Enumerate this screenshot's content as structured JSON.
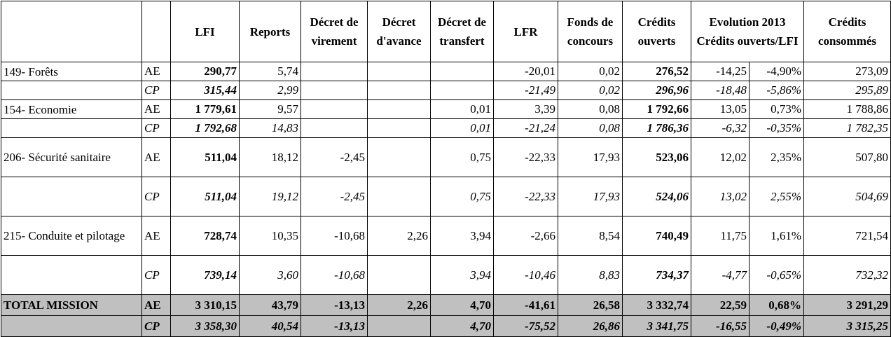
{
  "table": {
    "header": [
      "LFI",
      "Reports",
      "Décret de virement",
      "Décret d'avance",
      "Décret de transfert",
      "LFR",
      "Fonds de concours",
      "Crédits ouverts",
      "Evolution 2013 Crédits ouverts/LFI",
      "Crédits consommés"
    ],
    "rows": [
      [
        "149- Forêts",
        "AE",
        "290,77",
        "5,74",
        null,
        null,
        null,
        "-20,01",
        "0,02",
        "276,52",
        "-14,25",
        "-4,90%",
        "273,09"
      ],
      [
        null,
        "CP",
        "315,44",
        "2,99",
        null,
        null,
        null,
        "-21,49",
        "0,02",
        "296,96",
        "-18,48",
        "-5,86%",
        "295,89"
      ],
      [
        "154- Economie",
        "AE",
        "1 779,61",
        "9,57",
        null,
        null,
        "0,01",
        "3,39",
        "0,08",
        "1 792,66",
        "13,05",
        "0,73%",
        "1 788,86"
      ],
      [
        null,
        "CP",
        "1 792,68",
        "14,83",
        null,
        null,
        "0,01",
        "-21,24",
        "0,08",
        "1 786,36",
        "-6,32",
        "-0,35%",
        "1 782,35"
      ],
      [
        "206- Sécurité sanitaire",
        "AE",
        "511,04",
        "18,12",
        "-2,45",
        null,
        "0,75",
        "-22,33",
        "17,93",
        "523,06",
        "12,02",
        "2,35%",
        "507,80"
      ],
      [
        null,
        "CP",
        "511,04",
        "19,12",
        "-2,45",
        null,
        "0,75",
        "-22,33",
        "17,93",
        "524,06",
        "13,02",
        "2,55%",
        "504,69"
      ],
      [
        "215- Conduite et pilotage",
        "AE",
        "728,74",
        "10,35",
        "-10,68",
        "2,26",
        "3,94",
        "-2,66",
        "8,54",
        "740,49",
        "11,75",
        "1,61%",
        "721,54"
      ],
      [
        null,
        "CP",
        "739,14",
        "3,60",
        "-10,68",
        null,
        "3,94",
        "-10,46",
        "8,83",
        "734,37",
        "-4,77",
        "-0,65%",
        "732,32"
      ],
      [
        "TOTAL MISSION",
        "AE",
        "3 310,15",
        "43,79",
        "-13,13",
        "2,26",
        "4,70",
        "-41,61",
        "26,58",
        "3 332,74",
        "22,59",
        "0,68%",
        "3 291,29"
      ],
      [
        null,
        "CP",
        "3 358,30",
        "40,54",
        "-13,13",
        null,
        "4,70",
        "-75,52",
        "26,86",
        "3 341,75",
        "-16,55",
        "-0,49%",
        "3 315,25"
      ]
    ]
  }
}
